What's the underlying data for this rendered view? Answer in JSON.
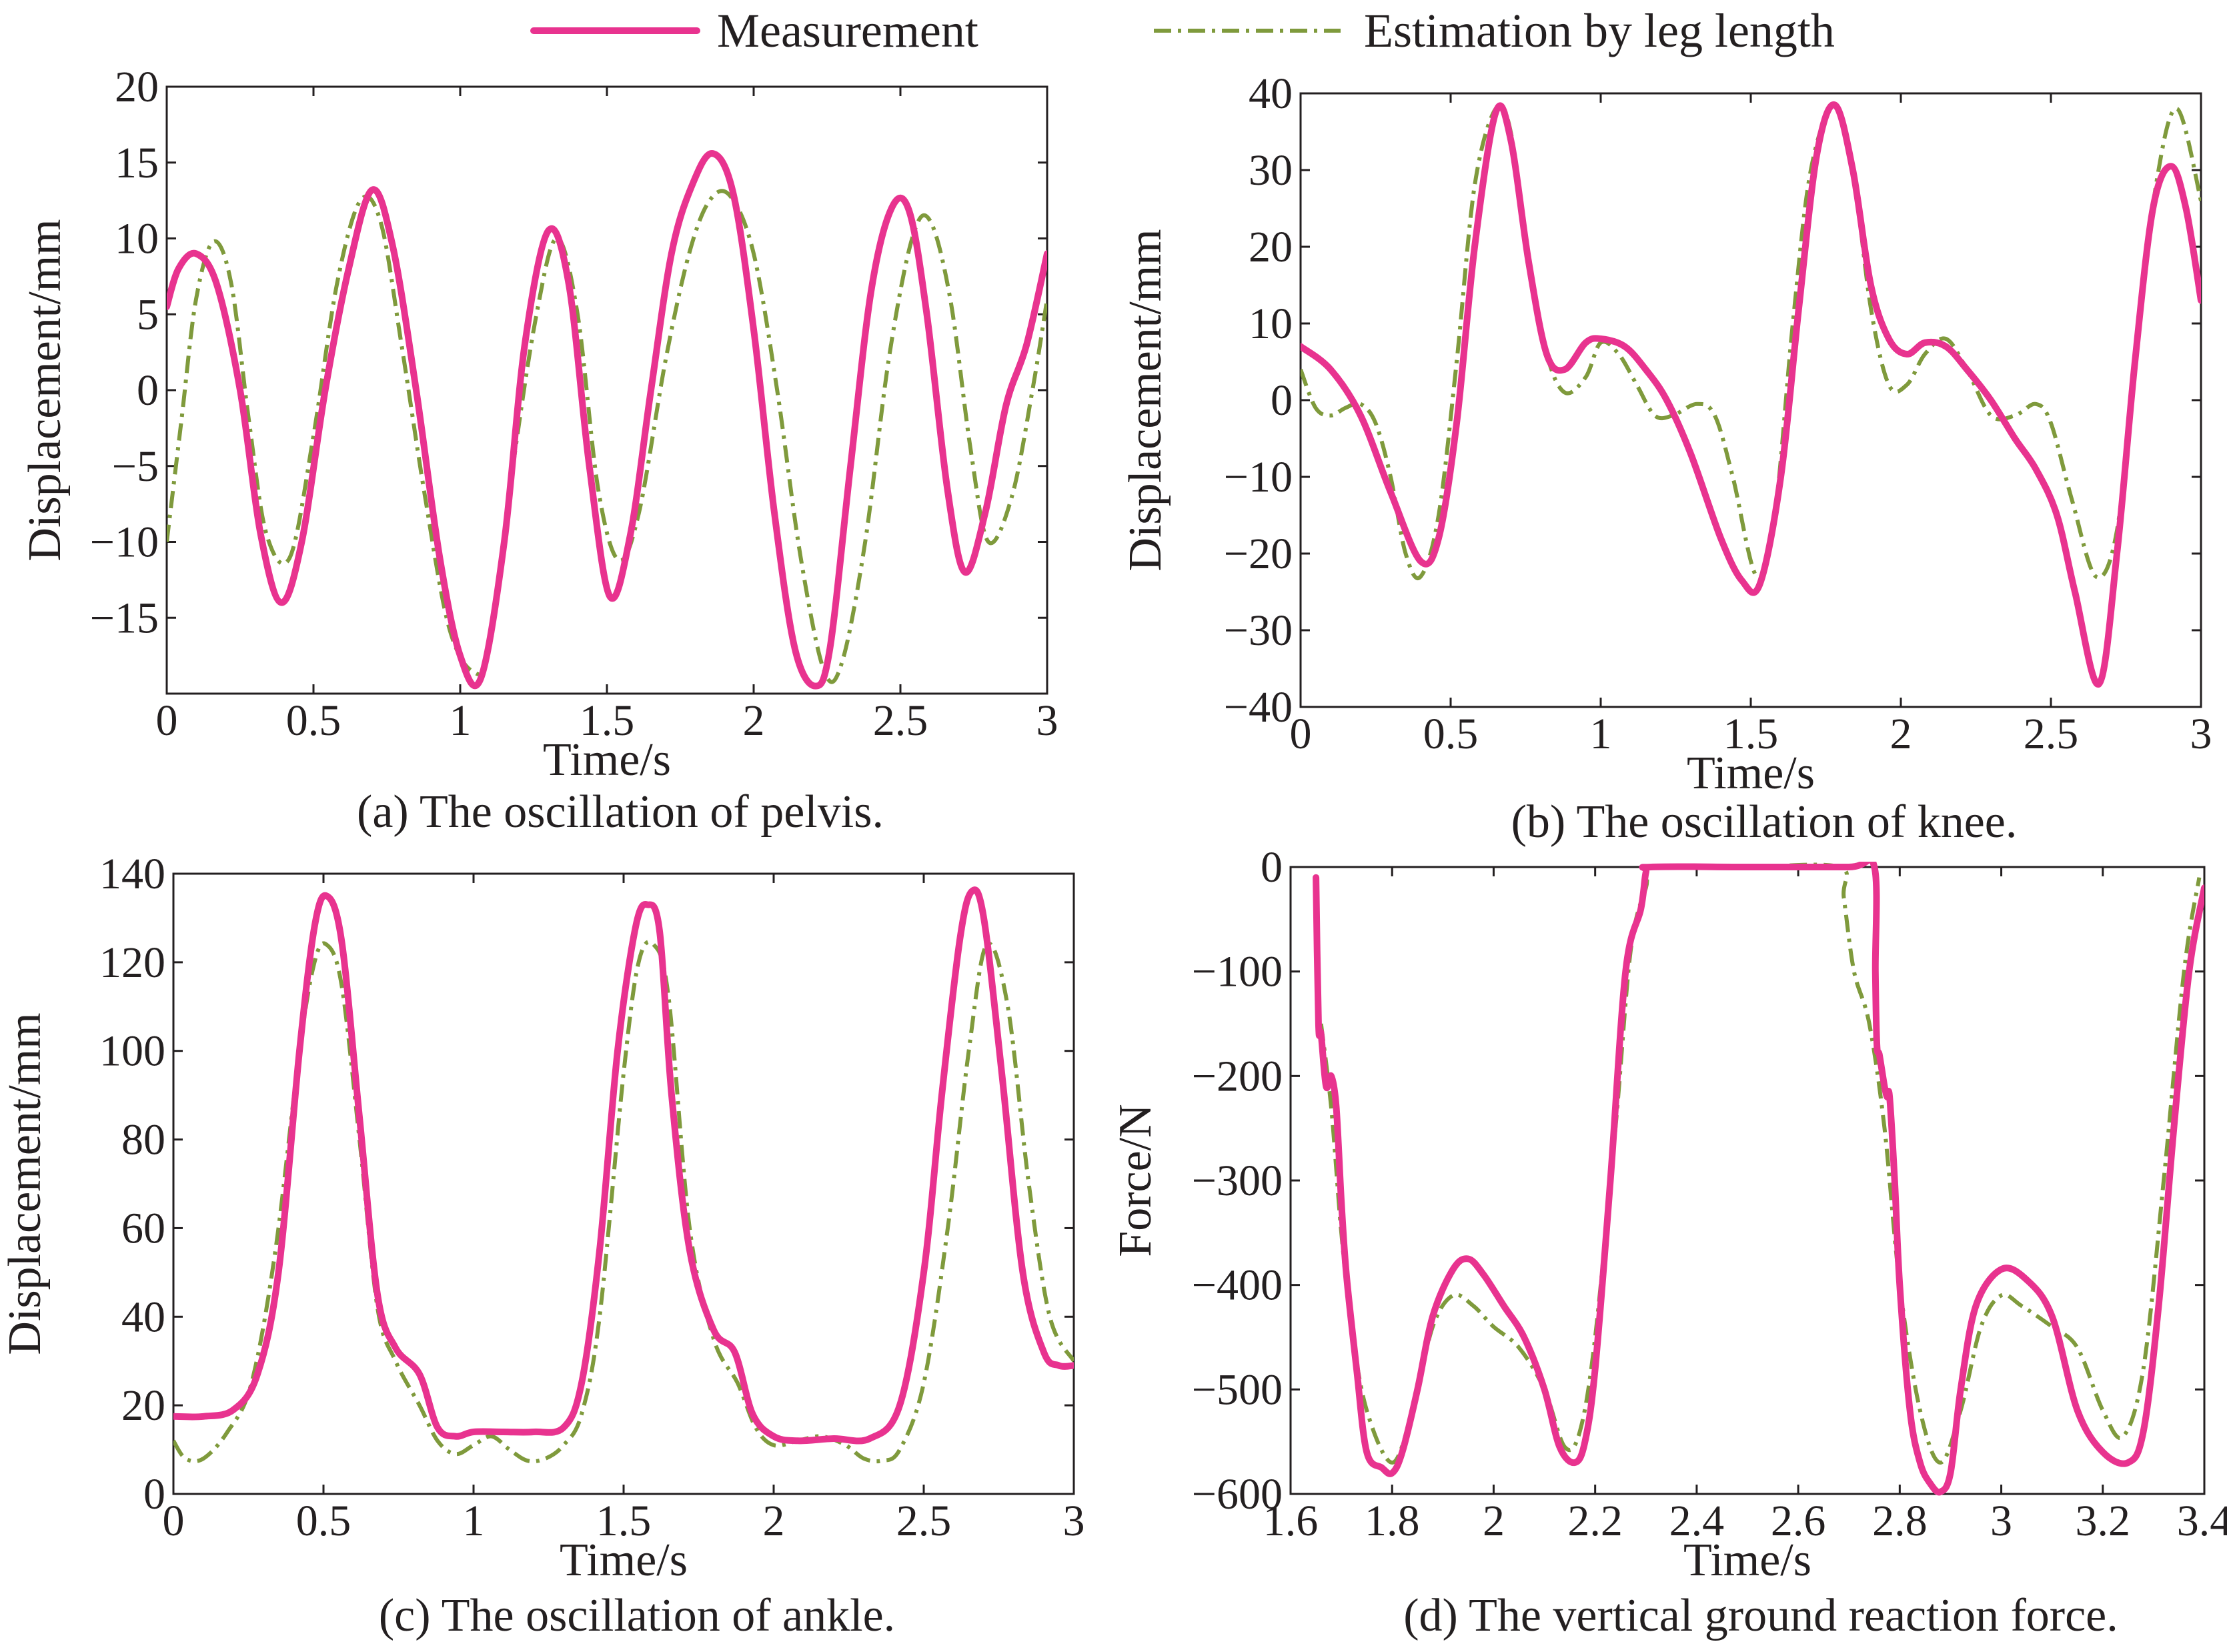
{
  "legend": {
    "measurement_label": "Measurement",
    "estimation_label": "Estimation by leg length"
  },
  "colors": {
    "measurement": "#e8338f",
    "estimation": "#7f9a3c",
    "axis": "#231f20"
  },
  "chart_data": [
    {
      "id": "a",
      "type": "line",
      "title": "(a) The oscillation of pelvis.",
      "xlabel": "Time/s",
      "ylabel": "Displacement/mm",
      "xlim": [
        0,
        3
      ],
      "ylim": [
        -20,
        20
      ],
      "xticks": [
        0,
        0.5,
        1,
        1.5,
        2,
        2.5,
        3
      ],
      "xtick_labels": [
        "0",
        "0.5",
        "1",
        "1.5",
        "2",
        "2.5",
        "3"
      ],
      "yticks": [
        20,
        15,
        10,
        5,
        0,
        -5,
        -10,
        -15
      ],
      "ytick_labels": [
        "20",
        "15",
        "10",
        "5",
        "0",
        "-5",
        "-10",
        "-15"
      ],
      "series": [
        {
          "name": "Measurement",
          "x": [
            0,
            0.04,
            0.1,
            0.17,
            0.25,
            0.32,
            0.39,
            0.46,
            0.54,
            0.62,
            0.7,
            0.77,
            0.85,
            0.93,
            1.0,
            1.07,
            1.15,
            1.22,
            1.3,
            1.37,
            1.44,
            1.51,
            1.58,
            1.65,
            1.72,
            1.79,
            1.86,
            1.93,
            2.0,
            2.07,
            2.14,
            2.21,
            2.26,
            2.33,
            2.4,
            2.47,
            2.53,
            2.59,
            2.66,
            2.72,
            2.79,
            2.86,
            2.93,
            3.0
          ],
          "y": [
            5.5,
            8.0,
            9.0,
            7.0,
            0,
            -9.5,
            -14,
            -10,
            0,
            8.0,
            13.2,
            9.5,
            0,
            -11,
            -17.5,
            -19,
            -10,
            3.0,
            10.5,
            7.0,
            -5.0,
            -13.6,
            -9.5,
            0,
            9.0,
            13.5,
            15.6,
            13.0,
            4.0,
            -8.0,
            -17.0,
            -19.5,
            -17.0,
            -5.0,
            6.5,
            12.0,
            11.8,
            5.0,
            -6.5,
            -12.0,
            -8.0,
            -1.0,
            3.0,
            9.0
          ]
        },
        {
          "name": "Estimation by leg length",
          "x": [
            0,
            0.05,
            0.1,
            0.16,
            0.22,
            0.28,
            0.34,
            0.42,
            0.5,
            0.58,
            0.66,
            0.73,
            0.8,
            0.88,
            0.96,
            1.04,
            1.1,
            1.18,
            1.26,
            1.33,
            1.4,
            1.47,
            1.54,
            1.61,
            1.7,
            1.78,
            1.85,
            1.92,
            2.0,
            2.08,
            2.16,
            2.24,
            2.3,
            2.38,
            2.46,
            2.54,
            2.6,
            2.67,
            2.74,
            2.8,
            2.88,
            2.95,
            3.0
          ],
          "y": [
            -10,
            -2.0,
            6.0,
            9.8,
            7.0,
            -2.0,
            -9.5,
            -11,
            -3.0,
            7.0,
            12.5,
            11.0,
            3.0,
            -7.0,
            -15.5,
            -18.5,
            -17.0,
            -5.0,
            5.0,
            10.0,
            5.0,
            -6.5,
            -11.2,
            -8.0,
            2.0,
            9.0,
            12.5,
            12.8,
            9.0,
            0,
            -11.0,
            -18.5,
            -18.0,
            -10.0,
            2.0,
            10.0,
            11.2,
            6.0,
            -4.0,
            -10.0,
            -7.0,
            0,
            6.0
          ]
        }
      ]
    },
    {
      "id": "b",
      "type": "line",
      "title": "(b) The oscillation of knee.",
      "xlabel": "Time/s",
      "ylabel": "Displacement/mm",
      "xlim": [
        0,
        3
      ],
      "ylim": [
        -40,
        40
      ],
      "xticks": [
        0,
        0.5,
        1,
        1.5,
        2,
        2.5,
        3
      ],
      "xtick_labels": [
        "0",
        "0.5",
        "1",
        "1.5",
        "2",
        "2.5",
        "3"
      ],
      "yticks": [
        40,
        30,
        20,
        10,
        0,
        -10,
        -20,
        -30,
        -40
      ],
      "ytick_labels": [
        "40",
        "30",
        "20",
        "10",
        "0",
        "-10",
        "-20",
        "-30",
        "-40"
      ],
      "series": [
        {
          "name": "Measurement",
          "x": [
            0,
            0.1,
            0.2,
            0.3,
            0.4,
            0.46,
            0.52,
            0.58,
            0.65,
            0.7,
            0.76,
            0.82,
            0.88,
            0.95,
            1.0,
            1.08,
            1.15,
            1.22,
            1.3,
            1.4,
            1.47,
            1.53,
            1.6,
            1.66,
            1.72,
            1.78,
            1.84,
            1.9,
            1.96,
            2.02,
            2.08,
            2.15,
            2.22,
            2.3,
            2.38,
            2.45,
            2.52,
            2.58,
            2.66,
            2.72,
            2.78,
            2.84,
            2.9,
            2.95,
            3.0
          ],
          "y": [
            7,
            4,
            -2,
            -12,
            -21,
            -18,
            -3,
            20,
            37.5,
            34,
            18,
            6,
            4,
            7.5,
            8,
            7,
            4,
            0,
            -7,
            -18,
            -23.5,
            -24,
            -10,
            12,
            32,
            38.5,
            30,
            15,
            8,
            6,
            7.5,
            7,
            4,
            0,
            -5,
            -9,
            -15,
            -25,
            -37,
            -20,
            5,
            25,
            30.5,
            25,
            13
          ]
        },
        {
          "name": "Estimation by leg length",
          "x": [
            0,
            0.05,
            0.1,
            0.15,
            0.2,
            0.25,
            0.3,
            0.35,
            0.4,
            0.46,
            0.52,
            0.58,
            0.65,
            0.7,
            0.76,
            0.82,
            0.88,
            0.95,
            1.0,
            1.06,
            1.12,
            1.18,
            1.24,
            1.32,
            1.38,
            1.44,
            1.52,
            1.58,
            1.64,
            1.7,
            1.78,
            1.84,
            1.9,
            1.96,
            2.02,
            2.08,
            2.15,
            2.22,
            2.3,
            2.38,
            2.45,
            2.5,
            2.57,
            2.65,
            2.72,
            2.78,
            2.85,
            2.92,
            3.0
          ],
          "y": [
            4,
            -1,
            -2,
            -1,
            -0.5,
            -3,
            -10,
            -20,
            -23,
            -15,
            5,
            28,
            38,
            35,
            18,
            6,
            1,
            3,
            7.5,
            6,
            2,
            -2,
            -2,
            -0.5,
            -2,
            -10,
            -23,
            -15,
            10,
            30,
            38.5,
            30,
            12,
            2,
            2,
            6,
            8,
            4,
            -2,
            -2,
            -0.5,
            -3,
            -13,
            -23,
            -17,
            5,
            28,
            38,
            26
          ]
        }
      ]
    },
    {
      "id": "c",
      "type": "line",
      "title": "(c)  The oscillation of ankle.",
      "xlabel": "Time/s",
      "ylabel": "Displacement/mm",
      "xlim": [
        0,
        3
      ],
      "ylim": [
        0,
        140
      ],
      "xticks": [
        0,
        0.5,
        1,
        1.5,
        2,
        2.5,
        3
      ],
      "xtick_labels": [
        "0",
        "0.5",
        "1",
        "1.5",
        "2",
        "2.5",
        "3"
      ],
      "yticks": [
        140,
        120,
        100,
        80,
        60,
        40,
        20,
        0
      ],
      "ytick_labels": [
        "140",
        "120",
        "100",
        "80",
        "60",
        "40",
        "20",
        "0"
      ],
      "series": [
        {
          "name": "Measurement",
          "x": [
            0,
            0.1,
            0.2,
            0.28,
            0.35,
            0.42,
            0.47,
            0.51,
            0.56,
            0.62,
            0.68,
            0.74,
            0.82,
            0.88,
            0.94,
            1.0,
            1.1,
            1.2,
            1.3,
            1.36,
            1.42,
            1.48,
            1.54,
            1.58,
            1.62,
            1.66,
            1.72,
            1.8,
            1.87,
            1.93,
            2.0,
            2.08,
            2.2,
            2.32,
            2.42,
            2.5,
            2.56,
            2.62,
            2.66,
            2.7,
            2.76,
            2.83,
            2.9,
            2.95,
            3.0
          ],
          "y": [
            17.5,
            17.5,
            19,
            27,
            50,
            100,
            128,
            135,
            125,
            85,
            45,
            33,
            27,
            15,
            13,
            14,
            14,
            14,
            15,
            25,
            55,
            100,
            128,
            133,
            127,
            90,
            55,
            37,
            32,
            18,
            13,
            12,
            12.5,
            12.5,
            20,
            50,
            90,
            125,
            136,
            130,
            95,
            50,
            32,
            29,
            29
          ]
        },
        {
          "name": "Estimation by leg length",
          "x": [
            0,
            0.04,
            0.1,
            0.18,
            0.26,
            0.34,
            0.42,
            0.47,
            0.51,
            0.56,
            0.62,
            0.68,
            0.74,
            0.82,
            0.88,
            0.94,
            1.0,
            1.06,
            1.12,
            1.18,
            1.24,
            1.3,
            1.36,
            1.42,
            1.5,
            1.55,
            1.6,
            1.65,
            1.72,
            1.8,
            1.88,
            1.94,
            2.0,
            2.08,
            2.16,
            2.24,
            2.3,
            2.36,
            2.42,
            2.5,
            2.58,
            2.65,
            2.71,
            2.78,
            2.85,
            2.92,
            3.0
          ],
          "y": [
            12,
            8,
            8,
            14,
            25,
            55,
            100,
            120,
            124,
            115,
            80,
            42,
            30,
            20,
            12,
            9,
            11,
            13,
            10,
            7.5,
            8,
            11,
            18,
            40,
            95,
            120,
            124,
            112,
            60,
            35,
            25,
            15,
            11,
            12,
            13,
            11,
            8,
            7.5,
            10,
            25,
            60,
            100,
            124,
            110,
            70,
            40,
            30
          ]
        }
      ]
    },
    {
      "id": "d",
      "type": "line",
      "title": "(d) The vertical ground reaction force.",
      "xlabel": "Time/s",
      "ylabel": "Force/N",
      "xlim": [
        1.6,
        3.4
      ],
      "ylim": [
        -600,
        0
      ],
      "xticks": [
        1.6,
        1.8,
        2,
        2.2,
        2.4,
        2.6,
        2.8,
        3,
        3.2,
        3.4
      ],
      "xtick_labels": [
        "1.6",
        "1.8",
        "2",
        "2.2",
        "2.4",
        "2.6",
        "2.8",
        "3",
        "3.2",
        "3.4"
      ],
      "yticks": [
        0,
        -100,
        -200,
        -300,
        -400,
        -500,
        -600
      ],
      "ytick_labels": [
        "0",
        "-100",
        "-200",
        "-300",
        "-400",
        "-500",
        "-600"
      ],
      "series": [
        {
          "name": "Measurement",
          "x": [
            1.65,
            1.655,
            1.66,
            1.67,
            1.68,
            1.69,
            1.7,
            1.71,
            1.73,
            1.75,
            1.78,
            1.8,
            1.82,
            1.85,
            1.88,
            1.92,
            1.95,
            1.98,
            2.02,
            2.06,
            2.1,
            2.13,
            2.16,
            2.18,
            2.2,
            2.23,
            2.26,
            2.29,
            2.3,
            2.31,
            2.5,
            2.7,
            2.75,
            2.752,
            2.755,
            2.76,
            2.77,
            2.775,
            2.78,
            2.79,
            2.8,
            2.82,
            2.84,
            2.86,
            2.88,
            2.9,
            2.92,
            2.95,
            3.0,
            3.05,
            3.1,
            3.15,
            3.2,
            3.25,
            3.28,
            3.31,
            3.34,
            3.37,
            3.4
          ],
          "y": [
            -10,
            -150,
            -160,
            -210,
            -200,
            -230,
            -320,
            -390,
            -480,
            -560,
            -575,
            -580,
            -560,
            -500,
            -430,
            -385,
            -375,
            -390,
            -420,
            -450,
            -500,
            -555,
            -570,
            -550,
            -480,
            -300,
            -100,
            -40,
            -5,
            0,
            0,
            0,
            0,
            -100,
            -170,
            -180,
            -210,
            -220,
            -220,
            -300,
            -400,
            -520,
            -570,
            -590,
            -598,
            -580,
            -500,
            -420,
            -385,
            -395,
            -430,
            -520,
            -560,
            -570,
            -540,
            -420,
            -250,
            -100,
            -20
          ]
        },
        {
          "name": "Estimation by leg length",
          "x": [
            1.66,
            1.68,
            1.7,
            1.72,
            1.75,
            1.8,
            1.84,
            1.88,
            1.92,
            1.96,
            2.0,
            2.05,
            2.1,
            2.14,
            2.17,
            2.2,
            2.24,
            2.27,
            2.3,
            2.32,
            2.5,
            2.68,
            2.69,
            2.71,
            2.74,
            2.77,
            2.8,
            2.84,
            2.88,
            2.92,
            2.96,
            3.0,
            3.04,
            3.1,
            3.15,
            3.2,
            3.24,
            3.28,
            3.32,
            3.36,
            3.39
          ],
          "y": [
            -150,
            -230,
            -350,
            -440,
            -520,
            -570,
            -520,
            -440,
            -410,
            -420,
            -440,
            -460,
            -500,
            -555,
            -540,
            -450,
            -250,
            -80,
            -20,
            0,
            0,
            0,
            -30,
            -100,
            -150,
            -250,
            -400,
            -520,
            -570,
            -520,
            -440,
            -410,
            -420,
            -440,
            -460,
            -520,
            -545,
            -480,
            -300,
            -100,
            -10
          ]
        }
      ]
    }
  ]
}
